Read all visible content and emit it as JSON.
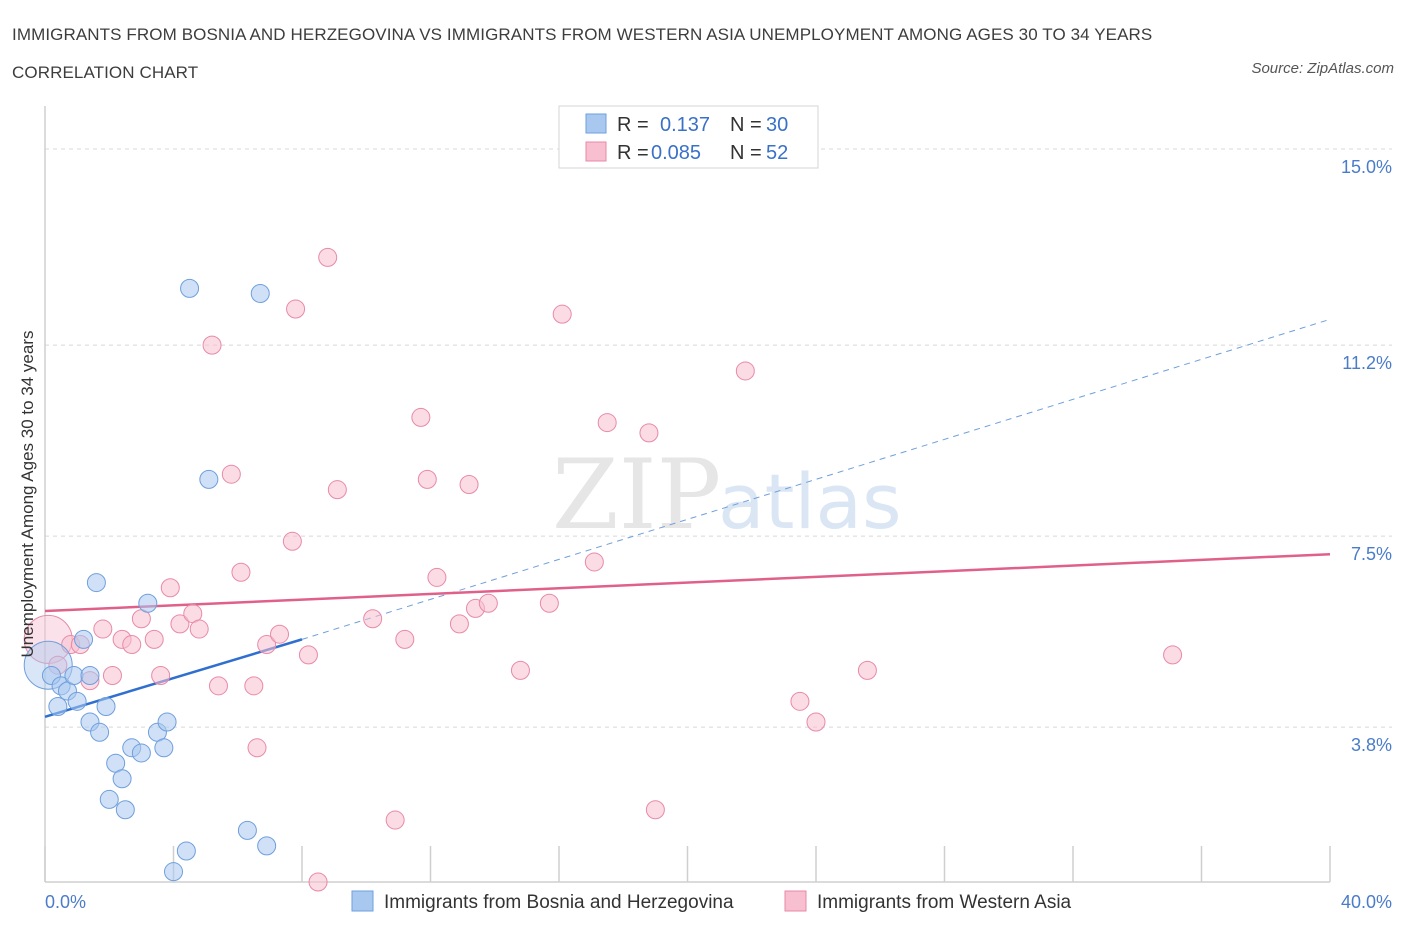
{
  "title": "IMMIGRANTS FROM BOSNIA AND HERZEGOVINA VS IMMIGRANTS FROM WESTERN ASIA UNEMPLOYMENT AMONG AGES 30 TO 34 YEARS CORRELATION CHART",
  "source": "Source: ZipAtlas.com",
  "watermark": {
    "zip": "ZIP",
    "atlas": "atlas"
  },
  "colors": {
    "blue": "#a9c8f0",
    "blue_stroke": "#6f9fdc",
    "blue_line": "#2f6fcf",
    "pink": "#f7bfd0",
    "pink_stroke": "#e88aa8",
    "pink_line": "#e0608a",
    "grid": "#d8d8d8",
    "axis_label": "#4a7cc9"
  },
  "chart_data": {
    "type": "scatter",
    "xlabel": "",
    "ylabel": "Unemployment Among Ages 30 to 34 years",
    "xlim": [
      0,
      40
    ],
    "ylim": [
      0.8,
      15.6
    ],
    "x_tick_labels": [
      {
        "value": 0,
        "label": "0.0%"
      },
      {
        "value": 40,
        "label": "40.0%"
      }
    ],
    "y_tick_labels": [
      {
        "value": 3.8,
        "label": "3.8%"
      },
      {
        "value": 7.5,
        "label": "7.5%"
      },
      {
        "value": 11.2,
        "label": "11.2%"
      },
      {
        "value": 15.0,
        "label": "15.0%"
      }
    ],
    "legend": {
      "rows": [
        {
          "r_label": "R = ",
          "r_value": "0.137",
          "n_label": "N = ",
          "n_value": "30"
        },
        {
          "r_label": "R = ",
          "r_value": "0.085",
          "n_label": "N = ",
          "n_value": "52"
        }
      ]
    },
    "series": [
      {
        "name": "Immigrants from Bosnia and Herzegovina",
        "r": 0.137,
        "n": 30,
        "trend": {
          "x": [
            0,
            8
          ],
          "y": [
            4.0,
            5.5
          ],
          "dashed_to": [
            40,
            11.7
          ]
        },
        "points": [
          {
            "x": 0.1,
            "y": 5.0,
            "big": true
          },
          {
            "x": 0.2,
            "y": 4.8
          },
          {
            "x": 0.4,
            "y": 4.2
          },
          {
            "x": 0.5,
            "y": 4.6
          },
          {
            "x": 0.7,
            "y": 4.5
          },
          {
            "x": 0.9,
            "y": 4.8
          },
          {
            "x": 1.0,
            "y": 4.3
          },
          {
            "x": 1.2,
            "y": 5.5
          },
          {
            "x": 1.4,
            "y": 3.9
          },
          {
            "x": 1.4,
            "y": 4.8
          },
          {
            "x": 1.6,
            "y": 6.6
          },
          {
            "x": 1.7,
            "y": 3.7
          },
          {
            "x": 1.9,
            "y": 4.2
          },
          {
            "x": 2.0,
            "y": 2.4
          },
          {
            "x": 2.2,
            "y": 3.1
          },
          {
            "x": 2.4,
            "y": 2.8
          },
          {
            "x": 2.5,
            "y": 2.2
          },
          {
            "x": 2.7,
            "y": 3.4
          },
          {
            "x": 3.0,
            "y": 3.3
          },
          {
            "x": 3.2,
            "y": 6.2
          },
          {
            "x": 3.5,
            "y": 3.7
          },
          {
            "x": 3.7,
            "y": 3.4
          },
          {
            "x": 3.8,
            "y": 3.9
          },
          {
            "x": 4.0,
            "y": 1.0
          },
          {
            "x": 4.4,
            "y": 1.4
          },
          {
            "x": 4.5,
            "y": 12.3
          },
          {
            "x": 5.1,
            "y": 8.6
          },
          {
            "x": 6.3,
            "y": 1.8
          },
          {
            "x": 6.7,
            "y": 12.2
          },
          {
            "x": 6.9,
            "y": 1.5
          }
        ]
      },
      {
        "name": "Immigrants from Western Asia",
        "r": 0.085,
        "n": 52,
        "trend": {
          "x": [
            0,
            40
          ],
          "y": [
            6.05,
            7.15
          ]
        },
        "points": [
          {
            "x": 0.1,
            "y": 5.5,
            "big": true
          },
          {
            "x": 0.4,
            "y": 5.0
          },
          {
            "x": 0.8,
            "y": 5.4
          },
          {
            "x": 1.1,
            "y": 5.4
          },
          {
            "x": 1.4,
            "y": 4.7
          },
          {
            "x": 1.8,
            "y": 5.7
          },
          {
            "x": 2.1,
            "y": 4.8
          },
          {
            "x": 2.4,
            "y": 5.5
          },
          {
            "x": 2.7,
            "y": 5.4
          },
          {
            "x": 3.0,
            "y": 5.9
          },
          {
            "x": 3.4,
            "y": 5.5
          },
          {
            "x": 3.6,
            "y": 4.8
          },
          {
            "x": 3.9,
            "y": 6.5
          },
          {
            "x": 4.2,
            "y": 5.8
          },
          {
            "x": 4.6,
            "y": 6.0
          },
          {
            "x": 4.8,
            "y": 5.7
          },
          {
            "x": 5.2,
            "y": 11.2
          },
          {
            "x": 5.4,
            "y": 4.6
          },
          {
            "x": 5.8,
            "y": 8.7
          },
          {
            "x": 6.1,
            "y": 6.8
          },
          {
            "x": 6.5,
            "y": 4.6
          },
          {
            "x": 6.6,
            "y": 3.4
          },
          {
            "x": 6.9,
            "y": 5.4
          },
          {
            "x": 7.3,
            "y": 5.6
          },
          {
            "x": 7.7,
            "y": 7.4
          },
          {
            "x": 7.8,
            "y": 11.9
          },
          {
            "x": 8.2,
            "y": 5.2
          },
          {
            "x": 8.5,
            "y": 0.8
          },
          {
            "x": 8.8,
            "y": 12.9
          },
          {
            "x": 9.1,
            "y": 8.4
          },
          {
            "x": 10.2,
            "y": 5.9
          },
          {
            "x": 10.9,
            "y": 2.0
          },
          {
            "x": 11.2,
            "y": 5.5
          },
          {
            "x": 11.7,
            "y": 9.8
          },
          {
            "x": 11.9,
            "y": 8.6
          },
          {
            "x": 12.2,
            "y": 6.7
          },
          {
            "x": 12.9,
            "y": 5.8
          },
          {
            "x": 13.2,
            "y": 8.5
          },
          {
            "x": 13.4,
            "y": 6.1
          },
          {
            "x": 13.8,
            "y": 6.2
          },
          {
            "x": 14.8,
            "y": 4.9
          },
          {
            "x": 15.7,
            "y": 6.2
          },
          {
            "x": 16.1,
            "y": 11.8
          },
          {
            "x": 17.1,
            "y": 7.0
          },
          {
            "x": 17.5,
            "y": 9.7
          },
          {
            "x": 18.8,
            "y": 9.5
          },
          {
            "x": 19.0,
            "y": 2.2
          },
          {
            "x": 21.8,
            "y": 10.7
          },
          {
            "x": 23.5,
            "y": 4.3
          },
          {
            "x": 24.0,
            "y": 3.9
          },
          {
            "x": 25.6,
            "y": 4.9
          },
          {
            "x": 35.1,
            "y": 5.2
          }
        ]
      }
    ]
  }
}
